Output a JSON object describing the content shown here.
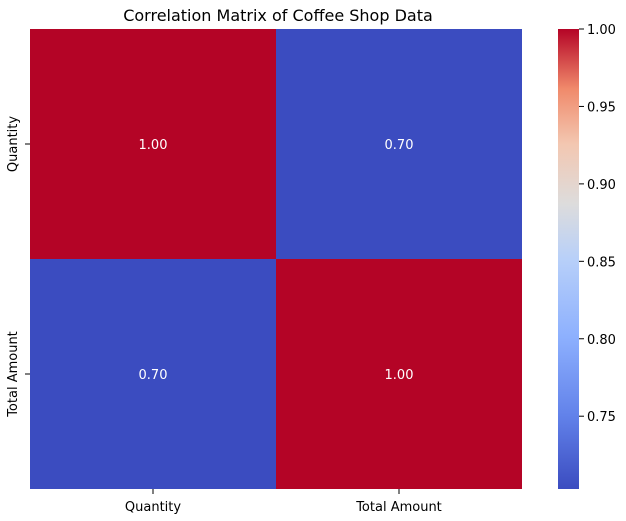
{
  "chart_data": {
    "type": "heatmap",
    "title": "Correlation Matrix of Coffee Shop Data",
    "x_categories": [
      "Quantity",
      "Total Amount"
    ],
    "y_categories": [
      "Quantity",
      "Total Amount"
    ],
    "values": [
      [
        1.0,
        0.7
      ],
      [
        0.7,
        1.0
      ]
    ],
    "cell_labels": [
      [
        "1.00",
        "0.70"
      ],
      [
        "0.70",
        "1.00"
      ]
    ],
    "colormap": "coolwarm",
    "colorbar": {
      "min": 0.7,
      "max": 1.0,
      "ticks": [
        0.75,
        0.8,
        0.85,
        0.9,
        0.95,
        1.0
      ],
      "tick_labels": [
        "0.75",
        "0.80",
        "0.85",
        "0.90",
        "0.95",
        "1.00"
      ]
    },
    "colors": {
      "high": "#b40426",
      "low": "#3b4cc0"
    }
  }
}
